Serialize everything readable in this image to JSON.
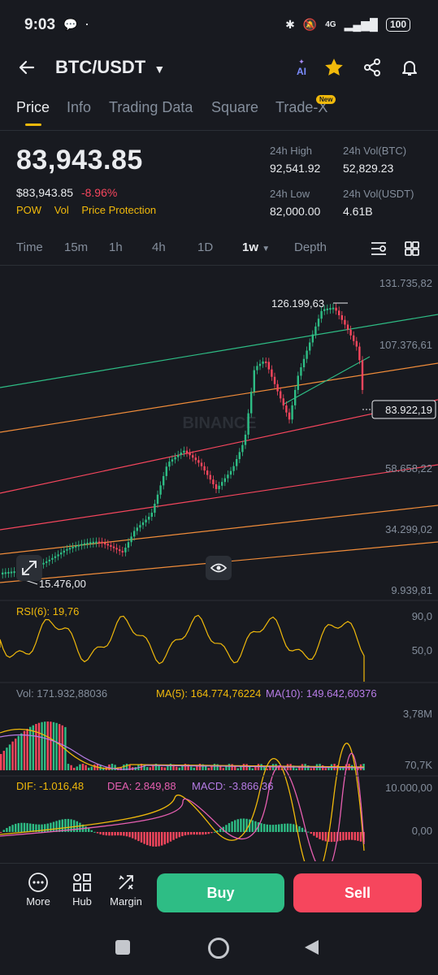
{
  "status_bar": {
    "time": "9:03",
    "network": "4G",
    "battery": "100"
  },
  "header": {
    "pair": "BTC/USDT",
    "ai_label": "AI"
  },
  "tabs": [
    {
      "label": "Price",
      "active": true
    },
    {
      "label": "Info"
    },
    {
      "label": "Trading Data"
    },
    {
      "label": "Square"
    },
    {
      "label": "Trade-X",
      "badge": "New"
    }
  ],
  "price": {
    "last": "83,943.85",
    "usd_value": "$83,943.85",
    "change": "-8.96%",
    "tags": [
      "POW",
      "Vol",
      "Price Protection"
    ]
  },
  "stats": {
    "high_label": "24h High",
    "high": "92,541.92",
    "low_label": "24h Low",
    "low": "82,000.00",
    "vol_btc_label": "24h Vol(BTC)",
    "vol_btc": "52,829.23",
    "vol_usdt_label": "24h Vol(USDT)",
    "vol_usdt": "4.61B"
  },
  "intervals": [
    "Time",
    "15m",
    "1h",
    "4h",
    "1D",
    "1w",
    "Depth"
  ],
  "active_interval": "1w",
  "chart_data": [
    {
      "type": "candlestick",
      "watermark": "BINANCE",
      "y_axis_labels": [
        "131.735,82",
        "107.376,61",
        "58.658,22",
        "34.299,02",
        "9.939,81"
      ],
      "current_price_label": "83.922,19",
      "high_marker": "126.199,63",
      "low_marker": "15.476,00",
      "ylim": [
        9939.81,
        131735.82
      ]
    },
    {
      "type": "line",
      "label": "RSI(6): 19,76",
      "y_axis_labels": [
        "90,0",
        "50,0"
      ]
    },
    {
      "type": "bar",
      "labels": {
        "vol": "Vol: 171.932,88036",
        "ma5": "MA(5): 164.774,76224",
        "ma10": "MA(10): 149.642,60376"
      },
      "y_axis_labels": [
        "3,78M",
        "70,7K"
      ]
    },
    {
      "type": "bar",
      "labels": {
        "dif": "DIF: -1.016,48",
        "dea": "DEA: 2.849,88",
        "macd": "MACD: -3.866,36"
      },
      "y_axis_labels": [
        "10.000,00",
        "0,00"
      ]
    }
  ],
  "bottom_bar": {
    "more": "More",
    "hub": "Hub",
    "margin": "Margin",
    "buy": "Buy",
    "sell": "Sell"
  },
  "colors": {
    "up": "#2ebd85",
    "down": "#f6465d",
    "accent": "#f0b90b",
    "bg": "#181a20"
  }
}
